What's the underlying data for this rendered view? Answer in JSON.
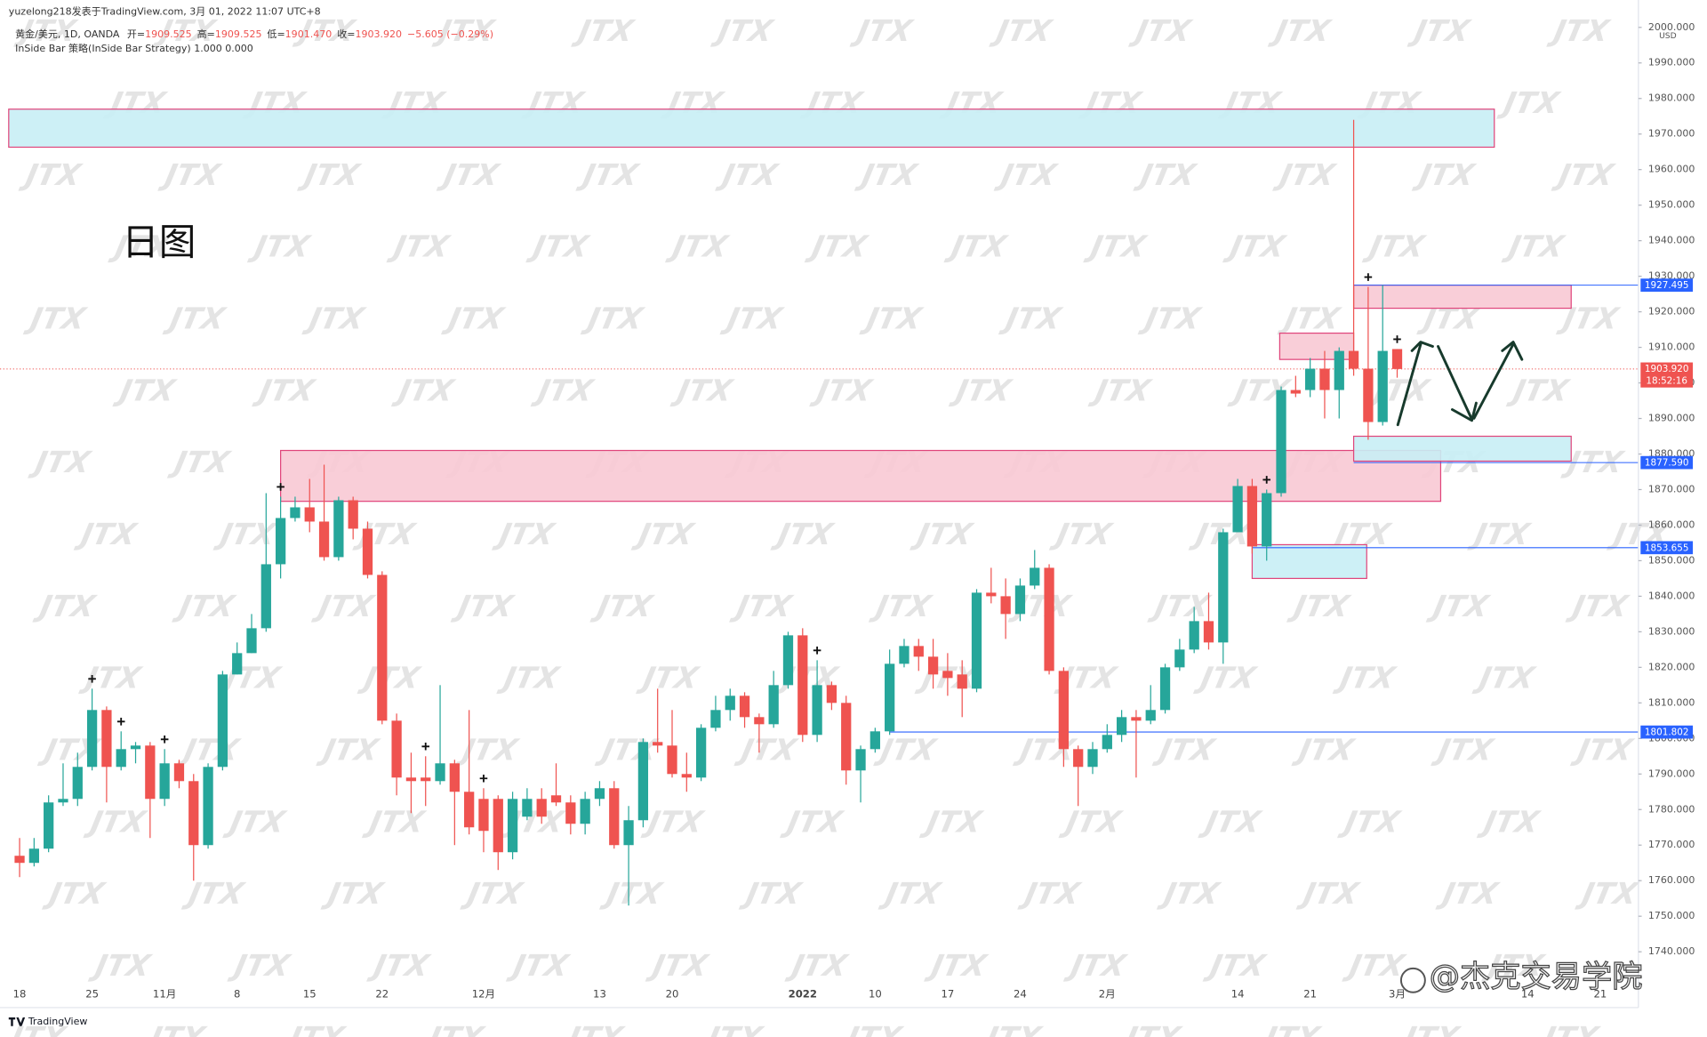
{
  "header": {
    "published": "yuzelong218发表于TradingView.com, 3月 01, 2022 11:07 UTC+8",
    "symbol": "黄金/美元, 1D, OANDA",
    "ohlc": [
      {
        "label": "开=",
        "value": "1909.525"
      },
      {
        "label": "高=",
        "value": "1909.525"
      },
      {
        "label": "低=",
        "value": "1901.470"
      },
      {
        "label": "收=",
        "value": "1903.920"
      }
    ],
    "change": "−5.605 (−0.29%)",
    "indicator": "InSide Bar 策略(InSide Bar Strategy) 1.000 0.000"
  },
  "chart_label": "日图",
  "watermark": "JTX",
  "credit": "@杰克交易学院",
  "footer": "TradingView",
  "chart_data": {
    "type": "candlestick",
    "currency": "USD",
    "categories": [
      "18",
      null,
      null,
      null,
      null,
      "25",
      null,
      null,
      null,
      null,
      "11月",
      null,
      null,
      null,
      null,
      "8",
      null,
      null,
      null,
      null,
      "15",
      null,
      null,
      null,
      null,
      "22",
      null,
      null,
      null,
      null,
      null,
      null,
      "12月",
      null,
      null,
      null,
      null,
      null,
      null,
      null,
      "13",
      null,
      null,
      null,
      null,
      "20",
      null,
      null,
      null,
      null,
      null,
      null,
      null,
      null,
      "2022",
      null,
      null,
      null,
      null,
      "10",
      null,
      null,
      null,
      null,
      "17",
      null,
      null,
      null,
      null,
      "24",
      null,
      null,
      null,
      null,
      null,
      "2月",
      null,
      null,
      null,
      null,
      null,
      null,
      null,
      null,
      "14",
      null,
      null,
      null,
      null,
      "21",
      null,
      null,
      null,
      null,
      null,
      "3月",
      null,
      null,
      null,
      null,
      null,
      null,
      null,
      null,
      "14",
      null,
      null,
      null,
      null,
      "21"
    ],
    "open": [
      1767,
      1765,
      1769,
      1782,
      1783,
      1792,
      1808,
      1792,
      1797,
      1798,
      1783,
      1793,
      1788,
      1770,
      1792,
      1818,
      1824,
      1831,
      1849,
      1862,
      1865,
      1861,
      1851,
      1867,
      1859,
      1846,
      1805,
      1789,
      1789,
      1788,
      1793,
      1785,
      1783,
      1783,
      1768,
      1778,
      1783,
      1784,
      1782,
      1776,
      1783,
      1786,
      1770,
      1777,
      1799,
      1798,
      1790,
      1789,
      1803,
      1808,
      1812,
      1806,
      1804,
      1815,
      1829,
      1801,
      1815,
      1810,
      1791,
      1797,
      1802,
      1821,
      1826,
      1823,
      1819,
      1818,
      1814,
      1841,
      1840,
      1835,
      1843,
      1848,
      1819,
      1797,
      1792,
      1797,
      1801,
      1806,
      1805,
      1808,
      1820,
      1825,
      1833,
      1827,
      1858,
      1871,
      1854,
      1869,
      1898,
      1898,
      1904,
      1898,
      1909,
      1904,
      1889,
      1909.525,
      null,
      null,
      null,
      null,
      null,
      null,
      null,
      null,
      null,
      null,
      null,
      null,
      null,
      null
    ],
    "high": [
      1772,
      1772,
      1784,
      1793,
      1796,
      1814,
      1809,
      1802,
      1799,
      1799,
      1797,
      1794,
      1790,
      1793,
      1819,
      1827,
      1835,
      1869,
      1868,
      1868,
      1873,
      1877,
      1868,
      1868,
      1861,
      1847,
      1807,
      1796,
      1795,
      1815,
      1794,
      1808,
      1786,
      1784,
      1785,
      1786,
      1786,
      1793,
      1784,
      1785,
      1788,
      1788,
      1781,
      1800,
      1814,
      1808,
      1796,
      1804,
      1812,
      1814,
      1813,
      1807,
      1819,
      1830,
      1831,
      1822,
      1816,
      1812,
      1798,
      1803,
      1825,
      1828,
      1828,
      1828,
      1824,
      1822,
      1842,
      1848,
      1845,
      1845,
      1853,
      1849,
      1820,
      1798,
      1799,
      1804,
      1808,
      1808,
      1815,
      1821,
      1828,
      1837,
      1841,
      1859,
      1873,
      1873,
      1870,
      1899,
      1902,
      1907,
      1909,
      1910,
      1974,
      1927,
      1927.5,
      1909.525,
      null,
      null,
      null,
      null,
      null,
      null,
      null,
      null,
      null,
      null,
      null,
      null,
      null,
      null
    ],
    "low": [
      1761,
      1764,
      1768,
      1781,
      1781,
      1791,
      1782,
      1791,
      1793,
      1772,
      1781,
      1786,
      1760,
      1769,
      1791,
      1818,
      1824,
      1830,
      1845,
      1861,
      1858,
      1850,
      1850,
      1856,
      1845,
      1804,
      1784,
      1779,
      1781,
      1787,
      1770,
      1773,
      1768,
      1763,
      1766,
      1777,
      1776,
      1781,
      1773,
      1773,
      1781,
      1769,
      1753,
      1775,
      1796,
      1789,
      1785,
      1788,
      1802,
      1805,
      1803,
      1796,
      1803,
      1814,
      1799,
      1799,
      1808,
      1787,
      1782,
      1796,
      1801,
      1820,
      1819,
      1814,
      1812,
      1806,
      1813,
      1838,
      1828,
      1833,
      1842,
      1818,
      1792,
      1781,
      1790,
      1796,
      1799,
      1789,
      1804,
      1807,
      1819,
      1824,
      1825,
      1821,
      1858,
      1852,
      1850,
      1868,
      1896,
      1896,
      1890,
      1890,
      1902,
      1884,
      1888,
      1901.47,
      null,
      null,
      null,
      null,
      null,
      null,
      null,
      null,
      null,
      null,
      null,
      null,
      null,
      null
    ],
    "close": [
      1765,
      1769,
      1782,
      1783,
      1792,
      1808,
      1792,
      1797,
      1798,
      1783,
      1793,
      1788,
      1770,
      1792,
      1818,
      1824,
      1831,
      1849,
      1862,
      1865,
      1861,
      1851,
      1867,
      1859,
      1846,
      1805,
      1789,
      1788,
      1788,
      1793,
      1785,
      1775,
      1774,
      1768,
      1783,
      1783,
      1778,
      1782,
      1776,
      1783,
      1786,
      1770,
      1777,
      1799,
      1798,
      1790,
      1789,
      1803,
      1808,
      1812,
      1806,
      1804,
      1815,
      1829,
      1801,
      1815,
      1810,
      1791,
      1797,
      1802,
      1821,
      1826,
      1823,
      1818,
      1817,
      1814,
      1841,
      1840,
      1835,
      1843,
      1848,
      1819,
      1797,
      1792,
      1797,
      1801,
      1806,
      1805,
      1808,
      1820,
      1825,
      1833,
      1827,
      1858,
      1871,
      1854,
      1869,
      1898,
      1897,
      1904,
      1898,
      1909,
      1904,
      1889,
      1909,
      1903.92,
      null,
      null,
      null,
      null,
      null,
      null,
      null,
      null,
      null,
      null,
      null,
      null,
      null,
      null
    ],
    "colors": {
      "up": "#26a69a",
      "down": "#ef5350"
    },
    "ylim": [
      1724.3,
      2007.7
    ],
    "yticks": [
      {
        "value": 1740,
        "label": "1740.000"
      },
      {
        "value": 1750,
        "label": "1750.000"
      },
      {
        "value": 1760,
        "label": "1760.000"
      },
      {
        "value": 1770,
        "label": "1770.000"
      },
      {
        "value": 1780,
        "label": "1780.000"
      },
      {
        "value": 1790,
        "label": "1790.000"
      },
      {
        "value": 1800,
        "label": "1800.000"
      },
      {
        "value": 1810,
        "label": "1810.000"
      },
      {
        "value": 1820,
        "label": "1820.000"
      },
      {
        "value": 1830,
        "label": "1830.000"
      },
      {
        "value": 1840,
        "label": "1840.000"
      },
      {
        "value": 1850,
        "label": "1850.000"
      },
      {
        "value": 1860,
        "label": "1860.000"
      },
      {
        "value": 1870,
        "label": "1870.000"
      },
      {
        "value": 1880,
        "label": "1880.000"
      },
      {
        "value": 1890,
        "label": "1890.000"
      },
      {
        "value": 1900,
        "label": "1900.000"
      },
      {
        "value": 1910,
        "label": "1910.000"
      },
      {
        "value": 1920,
        "label": "1920.000"
      },
      {
        "value": 1930,
        "label": "1930.000"
      },
      {
        "value": 1940,
        "label": "1940.000"
      },
      {
        "value": 1950,
        "label": "1950.000"
      },
      {
        "value": 1960,
        "label": "1960.000"
      },
      {
        "value": 1970,
        "label": "1970.000"
      },
      {
        "value": 1980,
        "label": "1980.000"
      },
      {
        "value": 1990,
        "label": "1990.000"
      },
      {
        "value": 2000,
        "label": "2000.000"
      }
    ],
    "grid": false,
    "zones": [
      {
        "from": -0.75,
        "to": 101.7,
        "top": 1977,
        "bottom": 1966.3,
        "fill": "#c8eef5",
        "stroke": "#e0457b"
      },
      {
        "from": 92,
        "to": 107,
        "top": 1927.5,
        "bottom": 1921,
        "fill": "#f8c9d4",
        "stroke": "#e0457b"
      },
      {
        "from": 86.9,
        "to": 92,
        "top": 1914,
        "bottom": 1906.6,
        "fill": "#f8c9d4",
        "stroke": "#e0457b"
      },
      {
        "from": 18,
        "to": 98,
        "top": 1881,
        "bottom": 1866.7,
        "fill": "#f8c9d4",
        "stroke": "#e0457b"
      },
      {
        "from": 92,
        "to": 107,
        "top": 1885,
        "bottom": 1878,
        "fill": "#c8eef5",
        "stroke": "#e0457b"
      },
      {
        "from": 85,
        "to": 92.9,
        "top": 1854.5,
        "bottom": 1845,
        "fill": "#c8eef5",
        "stroke": "#e0457b"
      }
    ],
    "levels": [
      {
        "value": 1927.495,
        "label": "1927.495",
        "from": 92
      },
      {
        "value": 1877.59,
        "label": "1877.590",
        "from": 92
      },
      {
        "value": 1853.655,
        "label": "1853.655",
        "from": 85
      },
      {
        "value": 1801.802,
        "label": "1801.802",
        "from": 60
      }
    ],
    "level_color": "#2962ff",
    "last_price": {
      "value": 1903.92,
      "label": "1903.920",
      "countdown": "18:52:16"
    },
    "signals": [
      5,
      7,
      10,
      18,
      28,
      32,
      55,
      86,
      93,
      95
    ]
  }
}
